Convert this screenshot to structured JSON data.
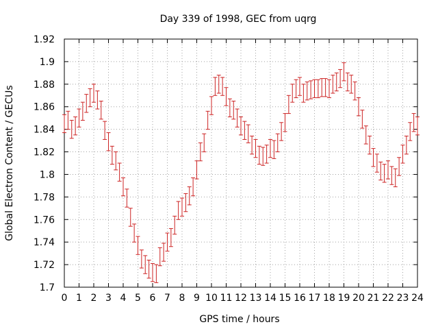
{
  "chart_data": {
    "type": "scatter",
    "title": "Day 339 of 1998, GEC from uqrg",
    "xlabel": "GPS time / hours",
    "ylabel": "Global Electron Content / GECUs",
    "xlim": [
      0,
      24
    ],
    "ylim": [
      1.7,
      1.92
    ],
    "xticks": [
      0,
      1,
      2,
      3,
      4,
      5,
      6,
      7,
      8,
      9,
      10,
      11,
      12,
      13,
      14,
      15,
      16,
      17,
      18,
      19,
      20,
      21,
      22,
      23,
      24
    ],
    "xtick_labels": [
      "0",
      "1",
      "2",
      "3",
      "4",
      "5",
      "6",
      "7",
      "8",
      "9",
      "10",
      "11",
      "12",
      "13",
      "14",
      "15",
      "16",
      "17",
      "18",
      "19",
      "20",
      "21",
      "22",
      "23",
      "24"
    ],
    "yticks": [
      1.7,
      1.72,
      1.74,
      1.76,
      1.78,
      1.8,
      1.82,
      1.84,
      1.86,
      1.88,
      1.9,
      1.92
    ],
    "ytick_labels": [
      "1.7",
      "1.72",
      "1.74",
      "1.76",
      "1.78",
      "1.8",
      "1.82",
      "1.84",
      "1.86",
      "1.88",
      "1.9",
      "1.92"
    ],
    "grid": true,
    "series": [
      {
        "name": "GEC",
        "color": "#cc2222",
        "error": 0.008,
        "x": [
          0,
          0.25,
          0.5,
          0.75,
          1,
          1.25,
          1.5,
          1.75,
          2,
          2.25,
          2.5,
          2.75,
          3,
          3.25,
          3.5,
          3.75,
          4,
          4.25,
          4.5,
          4.75,
          5,
          5.25,
          5.5,
          5.75,
          6,
          6.25,
          6.5,
          6.75,
          7,
          7.25,
          7.5,
          7.75,
          8,
          8.25,
          8.5,
          8.75,
          9,
          9.25,
          9.5,
          9.75,
          10,
          10.25,
          10.5,
          10.75,
          11,
          11.25,
          11.5,
          11.75,
          12,
          12.25,
          12.5,
          12.75,
          13,
          13.25,
          13.5,
          13.75,
          14,
          14.25,
          14.5,
          14.75,
          15,
          15.25,
          15.5,
          15.75,
          16,
          16.25,
          16.5,
          16.75,
          17,
          17.25,
          17.5,
          17.75,
          18,
          18.25,
          18.5,
          18.75,
          19,
          19.25,
          19.5,
          19.75,
          20,
          20.25,
          20.5,
          20.75,
          21,
          21.25,
          21.5,
          21.75,
          22,
          22.25,
          22.5,
          22.75,
          23,
          23.25,
          23.5,
          23.75,
          24
        ],
        "y": [
          1.845,
          1.848,
          1.84,
          1.843,
          1.85,
          1.856,
          1.863,
          1.868,
          1.872,
          1.866,
          1.857,
          1.839,
          1.829,
          1.817,
          1.812,
          1.802,
          1.789,
          1.779,
          1.762,
          1.748,
          1.737,
          1.725,
          1.72,
          1.716,
          1.713,
          1.712,
          1.727,
          1.731,
          1.74,
          1.744,
          1.755,
          1.768,
          1.771,
          1.775,
          1.781,
          1.789,
          1.804,
          1.82,
          1.828,
          1.848,
          1.861,
          1.878,
          1.88,
          1.878,
          1.869,
          1.859,
          1.857,
          1.85,
          1.843,
          1.839,
          1.836,
          1.826,
          1.823,
          1.817,
          1.816,
          1.818,
          1.823,
          1.822,
          1.828,
          1.838,
          1.846,
          1.862,
          1.872,
          1.876,
          1.878,
          1.872,
          1.874,
          1.875,
          1.876,
          1.876,
          1.877,
          1.877,
          1.876,
          1.88,
          1.882,
          1.885,
          1.891,
          1.882,
          1.88,
          1.874,
          1.86,
          1.849,
          1.835,
          1.826,
          1.815,
          1.81,
          1.803,
          1.801,
          1.804,
          1.799,
          1.797,
          1.807,
          1.818,
          1.826,
          1.838,
          1.846,
          1.843
        ]
      }
    ]
  }
}
